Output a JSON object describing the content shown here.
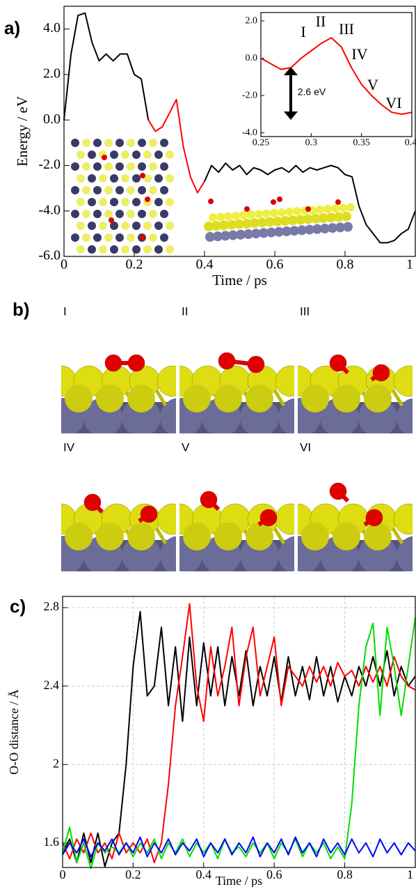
{
  "chart_data": [
    {
      "type": "line",
      "panel_label": "a)",
      "xlabel": "Time  /  ps",
      "ylabel": "Energy  /  eV",
      "x": [
        0,
        0.02,
        0.04,
        0.06,
        0.08,
        0.1,
        0.12,
        0.14,
        0.16,
        0.18,
        0.2,
        0.22,
        0.24,
        0.26,
        0.28,
        0.3,
        0.32,
        0.34,
        0.36,
        0.38,
        0.4,
        0.42,
        0.44,
        0.46,
        0.48,
        0.5,
        0.52,
        0.54,
        0.56,
        0.58,
        0.6,
        0.62,
        0.64,
        0.66,
        0.68,
        0.7,
        0.72,
        0.74,
        0.76,
        0.78,
        0.8,
        0.82,
        0.84,
        0.86,
        0.88,
        0.9,
        0.92,
        0.94,
        0.96,
        0.98,
        1.0
      ],
      "series": [
        {
          "color": "#000000",
          "values": [
            0,
            2.9,
            4.6,
            4.7,
            3.4,
            2.6,
            2.9,
            2.6,
            2.9,
            2.9,
            2.0,
            1.8,
            0.0,
            null,
            null,
            null,
            null,
            null,
            null,
            null,
            -2.7,
            -2.0,
            -2.3,
            -1.9,
            -2.2,
            -2.0,
            -2.4,
            -2.1,
            -2.2,
            -2.4,
            -2.2,
            -2.1,
            -2.3,
            -2.0,
            -2.3,
            -2.1,
            -2.2,
            -2.1,
            -2.0,
            -2.1,
            -2.4,
            -2.5,
            -3.8,
            -4.6,
            -5.0,
            -5.4,
            -5.4,
            -5.3,
            -5.0,
            -4.8,
            -4.0
          ]
        },
        {
          "color": "#ff0000",
          "values": [
            null,
            null,
            null,
            null,
            null,
            null,
            null,
            null,
            null,
            null,
            null,
            null,
            0.0,
            -0.5,
            -0.3,
            0.3,
            0.9,
            -1.2,
            -2.5,
            -3.2,
            -2.7,
            null,
            null,
            null,
            null,
            null,
            null,
            null,
            null,
            null,
            null,
            null,
            null,
            null,
            null,
            null,
            null,
            null,
            null,
            null,
            null,
            null,
            null,
            null,
            null,
            null,
            null,
            null,
            null,
            null,
            null
          ]
        }
      ],
      "xlim": [
        0,
        1
      ],
      "xticks": [
        0,
        0.2,
        0.4,
        0.6,
        0.8,
        1
      ],
      "ylim": [
        -6,
        5
      ],
      "yticks": [
        {
          "value": -6,
          "label": "-6.0"
        },
        {
          "value": -4,
          "label": "-4.0"
        },
        {
          "value": -2,
          "label": "-2.0"
        },
        {
          "value": 0,
          "label": "0.0"
        },
        {
          "value": 2,
          "label": "2.0"
        },
        {
          "value": 4,
          "label": "4.0"
        }
      ],
      "grid": false
    },
    {
      "type": "line",
      "annotations": [
        "I",
        "II",
        "III",
        "IV",
        "V",
        "VI",
        "2.6 eV"
      ],
      "x": [
        0.25,
        0.26,
        0.27,
        0.28,
        0.29,
        0.3,
        0.31,
        0.32,
        0.33,
        0.34,
        0.35,
        0.36,
        0.37,
        0.38,
        0.39,
        0.4
      ],
      "series": [
        {
          "color": "#ff0000",
          "values": [
            0.0,
            -0.3,
            -0.6,
            -0.5,
            0.0,
            0.4,
            0.8,
            1.1,
            0.6,
            -0.5,
            -1.4,
            -2.0,
            -2.5,
            -2.9,
            -3.0,
            -2.9
          ]
        }
      ],
      "xlim": [
        0.25,
        0.4
      ],
      "xticks": [
        0.25,
        0.3,
        0.35,
        0.4
      ],
      "ylim": [
        -4.2,
        2.45
      ],
      "yticks": [
        {
          "value": -4,
          "label": "-4.0"
        },
        {
          "value": -2,
          "label": "-2.0"
        },
        {
          "value": 0,
          "label": "0.0"
        },
        {
          "value": 2,
          "label": "2.0"
        }
      ],
      "grid": false
    },
    {
      "type": "line",
      "panel_label": "c)",
      "xlabel": "Time  /  ps",
      "ylabel": "O-O distance  /  Å",
      "x": [
        0,
        0.02,
        0.04,
        0.06,
        0.08,
        0.1,
        0.12,
        0.14,
        0.16,
        0.18,
        0.2,
        0.22,
        0.24,
        0.26,
        0.28,
        0.3,
        0.32,
        0.34,
        0.36,
        0.38,
        0.4,
        0.42,
        0.44,
        0.46,
        0.48,
        0.5,
        0.52,
        0.54,
        0.56,
        0.58,
        0.6,
        0.62,
        0.64,
        0.66,
        0.68,
        0.7,
        0.72,
        0.74,
        0.76,
        0.78,
        0.8,
        0.82,
        0.84,
        0.86,
        0.88,
        0.9,
        0.92,
        0.94,
        0.96,
        0.98,
        1.0
      ],
      "series": [
        {
          "color": "#000000",
          "values": [
            1.55,
            1.62,
            1.5,
            1.65,
            1.5,
            1.65,
            1.48,
            1.6,
            1.65,
            2.0,
            2.5,
            2.78,
            2.35,
            2.4,
            2.7,
            2.3,
            2.6,
            2.22,
            2.65,
            2.3,
            2.62,
            2.35,
            2.6,
            2.3,
            2.55,
            2.35,
            2.58,
            2.3,
            2.5,
            2.35,
            2.55,
            2.32,
            2.55,
            2.35,
            2.5,
            2.33,
            2.55,
            2.35,
            2.5,
            2.32,
            2.45,
            2.35,
            2.5,
            2.4,
            2.55,
            2.4,
            2.58,
            2.35,
            2.5,
            2.4,
            2.45
          ]
        },
        {
          "color": "#ff0000",
          "values": [
            1.6,
            1.52,
            1.62,
            1.55,
            1.65,
            1.55,
            1.6,
            1.52,
            1.65,
            1.55,
            1.6,
            1.55,
            1.62,
            1.5,
            1.6,
            1.9,
            2.3,
            2.55,
            2.82,
            2.4,
            2.22,
            2.6,
            2.35,
            2.5,
            2.7,
            2.3,
            2.55,
            2.7,
            2.35,
            2.5,
            2.65,
            2.3,
            2.5,
            2.45,
            2.4,
            2.5,
            2.42,
            2.5,
            2.4,
            2.52,
            2.45,
            2.48,
            2.4,
            2.5,
            2.42,
            2.5,
            2.4,
            2.55,
            2.45,
            2.4,
            2.38
          ]
        },
        {
          "color": "#00dd00",
          "values": [
            1.55,
            1.68,
            1.5,
            1.6,
            1.47,
            1.6,
            1.55,
            1.58,
            1.55,
            1.6,
            1.53,
            1.6,
            1.55,
            1.62,
            1.52,
            1.6,
            1.55,
            1.62,
            1.53,
            1.6,
            1.55,
            1.6,
            1.52,
            1.62,
            1.55,
            1.58,
            1.53,
            1.6,
            1.55,
            1.6,
            1.52,
            1.6,
            1.55,
            1.62,
            1.53,
            1.6,
            1.55,
            1.6,
            1.52,
            1.58,
            1.52,
            1.8,
            2.3,
            2.6,
            2.72,
            2.25,
            2.7,
            2.5,
            2.25,
            2.5,
            2.75
          ]
        },
        {
          "color": "#0000ff",
          "values": [
            1.54,
            1.6,
            1.55,
            1.62,
            1.53,
            1.6,
            1.56,
            1.62,
            1.54,
            1.6,
            1.55,
            1.63,
            1.53,
            1.6,
            1.55,
            1.62,
            1.54,
            1.6,
            1.56,
            1.62,
            1.53,
            1.6,
            1.55,
            1.62,
            1.54,
            1.6,
            1.55,
            1.63,
            1.53,
            1.6,
            1.55,
            1.62,
            1.54,
            1.63,
            1.55,
            1.6,
            1.53,
            1.62,
            1.55,
            1.6,
            1.54,
            1.62,
            1.55,
            1.6,
            1.53,
            1.62,
            1.55,
            1.6,
            1.54,
            1.6,
            1.56
          ]
        }
      ],
      "xlim": [
        0,
        1
      ],
      "xticks": [
        0,
        0.2,
        0.4,
        0.6,
        0.8,
        1
      ],
      "ylim": [
        1.475,
        2.857
      ],
      "yticks": [
        1.6,
        2,
        2.4,
        2.8
      ],
      "grid": true
    }
  ],
  "panel_b": {
    "label": "b)",
    "frames": [
      "I",
      "II",
      "III",
      "IV",
      "V",
      "VI"
    ]
  }
}
